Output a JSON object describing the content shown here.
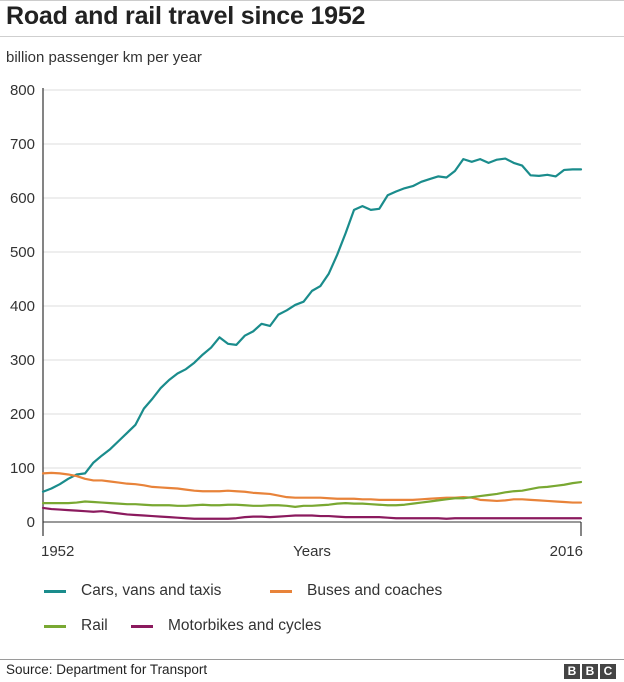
{
  "header": {
    "title": "Road and rail travel since 1952",
    "subtitle": "billion passenger km per year"
  },
  "footer": {
    "source": "Source: Department for Transport",
    "logo_letters": [
      "B",
      "B",
      "C"
    ]
  },
  "chart_data": {
    "type": "line",
    "title": "Road and rail travel since 1952",
    "ylabel": "billion passenger km per year",
    "xlabel": "Years",
    "x_tick_labels": [
      "1952",
      "Years",
      "2016"
    ],
    "xlim": [
      1952,
      2016
    ],
    "ylim": [
      0,
      800
    ],
    "y_ticks": [
      0,
      100,
      200,
      300,
      400,
      500,
      600,
      700,
      800
    ],
    "grid": true,
    "legend_position": "bottom",
    "x": [
      1952,
      1953,
      1954,
      1955,
      1956,
      1957,
      1958,
      1959,
      1960,
      1961,
      1962,
      1963,
      1964,
      1965,
      1966,
      1967,
      1968,
      1969,
      1970,
      1971,
      1972,
      1973,
      1974,
      1975,
      1976,
      1977,
      1978,
      1979,
      1980,
      1981,
      1982,
      1983,
      1984,
      1985,
      1986,
      1987,
      1988,
      1989,
      1990,
      1991,
      1992,
      1993,
      1994,
      1995,
      1996,
      1997,
      1998,
      1999,
      2000,
      2001,
      2002,
      2003,
      2004,
      2005,
      2006,
      2007,
      2008,
      2009,
      2010,
      2011,
      2012,
      2013,
      2014,
      2015,
      2016
    ],
    "series": [
      {
        "name": "Cars, vans and taxis",
        "color": "#1a8c8c",
        "values": [
          56,
          62,
          70,
          80,
          88,
          90,
          110,
          123,
          135,
          150,
          165,
          180,
          210,
          228,
          248,
          263,
          275,
          283,
          295,
          310,
          323,
          342,
          330,
          328,
          345,
          353,
          367,
          363,
          384,
          392,
          402,
          408,
          428,
          437,
          460,
          495,
          535,
          578,
          585,
          578,
          580,
          605,
          612,
          618,
          622,
          630,
          635,
          640,
          638,
          650,
          672,
          667,
          672,
          665,
          671,
          673,
          665,
          660,
          642,
          641,
          643,
          640,
          652,
          653,
          653
        ]
      },
      {
        "name": "Buses and coaches",
        "color": "#e8833a",
        "values": [
          90,
          91,
          90,
          88,
          85,
          80,
          77,
          77,
          75,
          73,
          71,
          70,
          68,
          65,
          64,
          63,
          62,
          60,
          58,
          57,
          57,
          57,
          58,
          57,
          56,
          54,
          53,
          52,
          49,
          46,
          45,
          45,
          45,
          45,
          44,
          43,
          43,
          43,
          42,
          42,
          41,
          41,
          41,
          41,
          41,
          42,
          43,
          44,
          45,
          45,
          46,
          45,
          41,
          40,
          39,
          40,
          42,
          42,
          41,
          40,
          39,
          38,
          37,
          36,
          36
        ]
      },
      {
        "name": "Rail",
        "color": "#79a832",
        "values": [
          35,
          35,
          35,
          35,
          36,
          38,
          37,
          36,
          35,
          34,
          33,
          33,
          32,
          31,
          31,
          31,
          30,
          30,
          31,
          32,
          31,
          31,
          32,
          32,
          31,
          30,
          30,
          31,
          31,
          30,
          28,
          30,
          30,
          31,
          32,
          34,
          35,
          34,
          34,
          33,
          32,
          31,
          31,
          32,
          34,
          36,
          38,
          40,
          42,
          44,
          44,
          46,
          48,
          50,
          52,
          55,
          57,
          58,
          61,
          64,
          65,
          67,
          69,
          72,
          74
        ]
      },
      {
        "name": "Motorbikes and cycles",
        "color": "#8b1a5e",
        "values": [
          26,
          24,
          23,
          22,
          21,
          20,
          19,
          20,
          18,
          16,
          14,
          13,
          12,
          11,
          10,
          9,
          8,
          7,
          6,
          6,
          6,
          6,
          6,
          7,
          9,
          10,
          10,
          9,
          10,
          11,
          12,
          12,
          12,
          11,
          11,
          10,
          9,
          9,
          9,
          9,
          9,
          8,
          7,
          7,
          7,
          7,
          7,
          7,
          6,
          7,
          7,
          7,
          7,
          7,
          7,
          7,
          7,
          7,
          7,
          7,
          7,
          7,
          7,
          7,
          7
        ]
      }
    ]
  }
}
